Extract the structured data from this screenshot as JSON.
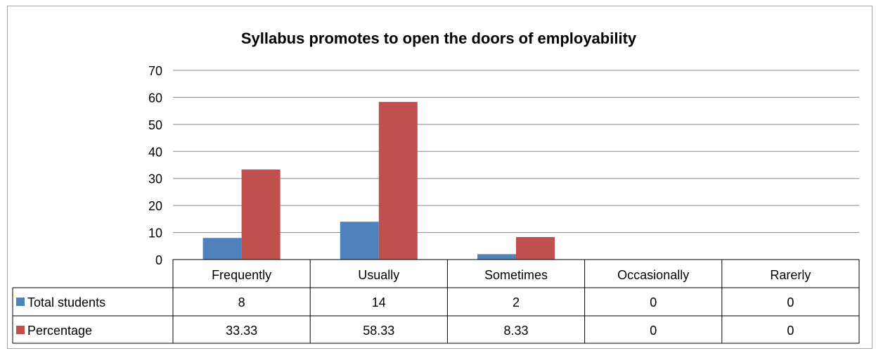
{
  "chart_data": {
    "type": "bar",
    "title": "Syllabus promotes to open the doors of employability",
    "categories": [
      "Frequently",
      "Usually",
      "Sometimes",
      "Occasionally",
      "Rarerly"
    ],
    "series": [
      {
        "name": "Total students",
        "values": [
          8,
          14,
          2,
          0,
          0
        ],
        "labels": [
          "8",
          "14",
          "2",
          "0",
          "0"
        ],
        "color": "#4f81bd"
      },
      {
        "name": "Percentage",
        "values": [
          33.33,
          58.33,
          8.33,
          0,
          0
        ],
        "labels": [
          "33.33",
          "58.33",
          "8.33",
          "0",
          "0"
        ],
        "color": "#c0504d"
      }
    ],
    "ylim": [
      0,
      70
    ],
    "yticks": [
      0,
      10,
      20,
      30,
      40,
      50,
      60,
      70
    ],
    "grid": true,
    "legend": "data-table"
  }
}
